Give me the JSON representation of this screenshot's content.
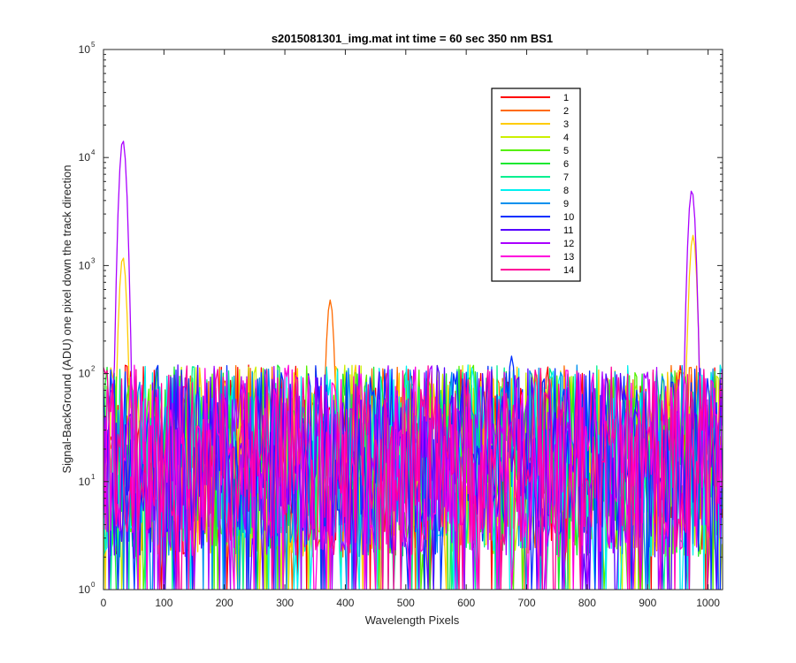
{
  "chart_data": {
    "type": "line",
    "title": "s2015081301_img.mat int time = 60 sec  350 nm BS1",
    "xlabel": "Wavelength Pixels",
    "ylabel": "Signal-BackGround (ADU) one pixel down the track direction",
    "xlim": [
      0,
      1024
    ],
    "ylim": [
      1,
      100000
    ],
    "yscale": "log",
    "x_ticks": [
      0,
      100,
      200,
      300,
      400,
      500,
      600,
      700,
      800,
      900,
      1000
    ],
    "y_ticks": [
      {
        "value": 1,
        "base": "10",
        "exp": "0"
      },
      {
        "value": 10,
        "base": "10",
        "exp": "1"
      },
      {
        "value": 100,
        "base": "10",
        "exp": "2"
      },
      {
        "value": 1000,
        "base": "10",
        "exp": "3"
      },
      {
        "value": 10000,
        "base": "10",
        "exp": "4"
      },
      {
        "value": 100000,
        "base": "10",
        "exp": "5"
      }
    ],
    "grid": false,
    "legend_position": "top-right",
    "noise": {
      "x_range": [
        0,
        1024
      ],
      "step": 3,
      "typical_range": [
        2,
        120
      ],
      "median": 20
    },
    "series": [
      {
        "name": "1",
        "color": "#ff0000",
        "peaks": []
      },
      {
        "name": "2",
        "color": "#ff6a00",
        "peaks": [
          {
            "x": 375,
            "y": 480
          }
        ]
      },
      {
        "name": "3",
        "color": "#ffcc00",
        "peaks": [
          {
            "x": 32,
            "y": 1200
          },
          {
            "x": 975,
            "y": 1900
          }
        ]
      },
      {
        "name": "4",
        "color": "#ccf000",
        "peaks": []
      },
      {
        "name": "5",
        "color": "#55f000",
        "peaks": []
      },
      {
        "name": "6",
        "color": "#18e830",
        "peaks": []
      },
      {
        "name": "7",
        "color": "#00f090",
        "peaks": []
      },
      {
        "name": "8",
        "color": "#00f0f0",
        "peaks": []
      },
      {
        "name": "9",
        "color": "#0090ee",
        "peaks": []
      },
      {
        "name": "10",
        "color": "#0030ff",
        "peaks": [
          {
            "x": 675,
            "y": 145
          }
        ]
      },
      {
        "name": "11",
        "color": "#5500ff",
        "peaks": []
      },
      {
        "name": "12",
        "color": "#aa00ff",
        "peaks": [
          {
            "x": 32,
            "y": 14500
          },
          {
            "x": 973,
            "y": 5000
          }
        ]
      },
      {
        "name": "13",
        "color": "#ff00dd",
        "peaks": []
      },
      {
        "name": "14",
        "color": "#ff0099",
        "peaks": []
      }
    ]
  }
}
